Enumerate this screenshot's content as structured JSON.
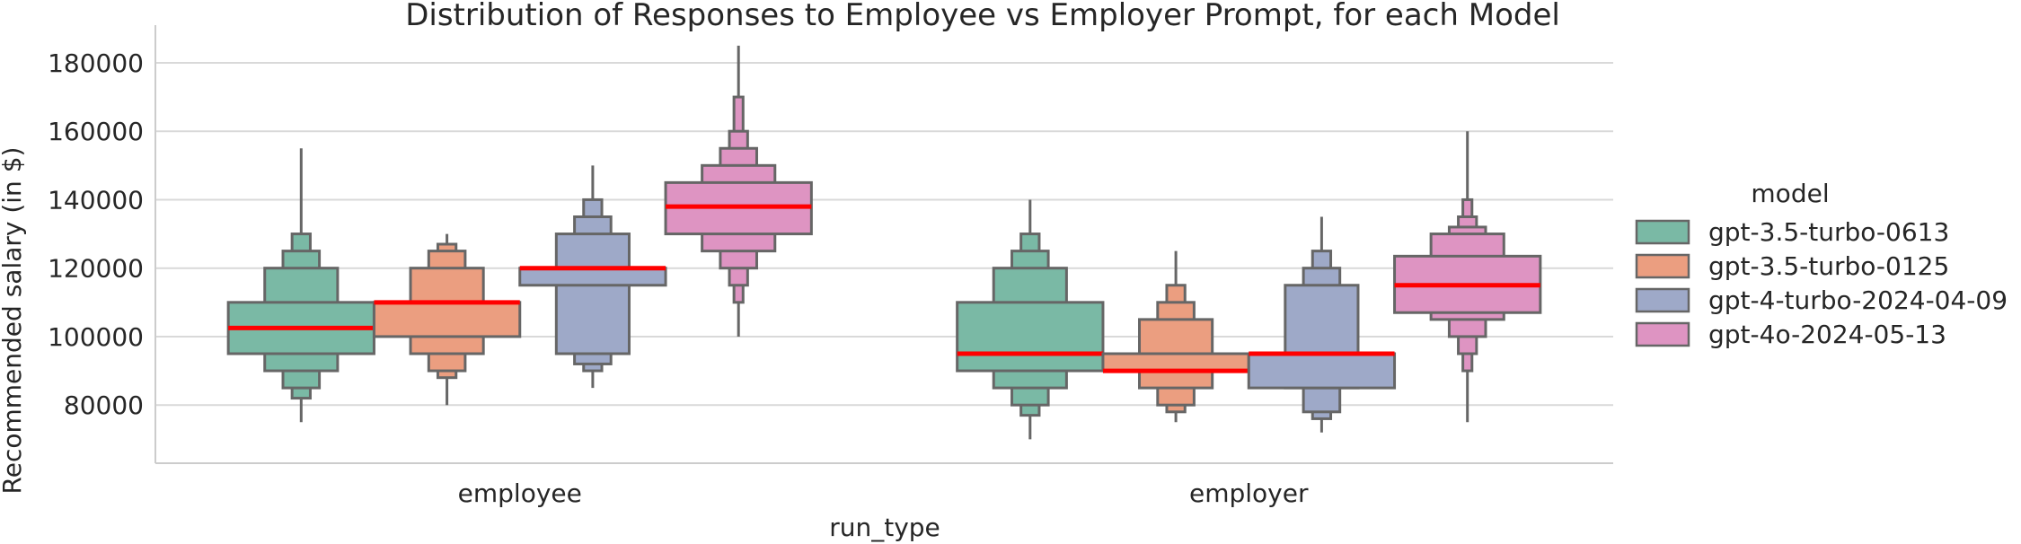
{
  "chart_data": {
    "type": "boxen",
    "title": "Distribution of Responses to Employee vs Employer Prompt, for each Model",
    "xlabel": "run_type",
    "ylabel": "Recommended salary (in $)",
    "categories": [
      "employee",
      "employer"
    ],
    "ylim": [
      63000,
      191000
    ],
    "yticks": [
      80000,
      100000,
      120000,
      140000,
      160000,
      180000
    ],
    "grid": "horizontal",
    "legend": {
      "title": "model",
      "placement": "right"
    },
    "series": [
      {
        "name": "gpt-3.5-turbo-0613",
        "color": "#7ab9a5",
        "boxes": [
          {
            "category": "employee",
            "median": 102500,
            "levels": [
              [
                95000,
                110000
              ],
              [
                90000,
                120000
              ],
              [
                85000,
                125000
              ],
              [
                82000,
                130000
              ]
            ],
            "whisker": [
              75000,
              155000
            ]
          },
          {
            "category": "employer",
            "median": 95000,
            "levels": [
              [
                90000,
                110000
              ],
              [
                85000,
                120000
              ],
              [
                80000,
                125000
              ],
              [
                77000,
                130000
              ]
            ],
            "whisker": [
              70000,
              140000
            ]
          }
        ]
      },
      {
        "name": "gpt-3.5-turbo-0125",
        "color": "#eb9e80",
        "boxes": [
          {
            "category": "employee",
            "median": 110000,
            "levels": [
              [
                100000,
                110000
              ],
              [
                95000,
                120000
              ],
              [
                90000,
                125000
              ],
              [
                88000,
                127000
              ]
            ],
            "whisker": [
              80000,
              130000
            ]
          },
          {
            "category": "employer",
            "median": 90000,
            "levels": [
              [
                90000,
                95000
              ],
              [
                85000,
                105000
              ],
              [
                80000,
                110000
              ],
              [
                78000,
                115000
              ]
            ],
            "whisker": [
              75000,
              125000
            ]
          }
        ]
      },
      {
        "name": "gpt-4-turbo-2024-04-09",
        "color": "#9ea9c8",
        "boxes": [
          {
            "category": "employee",
            "median": 120000,
            "levels": [
              [
                115000,
                120000
              ],
              [
                95000,
                130000
              ],
              [
                92000,
                135000
              ],
              [
                90000,
                140000
              ]
            ],
            "whisker": [
              85000,
              150000
            ]
          },
          {
            "category": "employer",
            "median": 95000,
            "levels": [
              [
                85000,
                95000
              ],
              [
                85000,
                115000
              ],
              [
                78000,
                120000
              ],
              [
                76000,
                125000
              ]
            ],
            "whisker": [
              72000,
              135000
            ]
          }
        ]
      },
      {
        "name": "gpt-4o-2024-05-13",
        "color": "#de94c2",
        "boxes": [
          {
            "category": "employee",
            "median": 138000,
            "levels": [
              [
                130000,
                145000
              ],
              [
                125000,
                150000
              ],
              [
                120000,
                155000
              ],
              [
                115000,
                160000
              ],
              [
                110000,
                170000
              ]
            ],
            "whisker": [
              100000,
              185000
            ]
          },
          {
            "category": "employer",
            "median": 115000,
            "levels": [
              [
                107000,
                123500
              ],
              [
                105000,
                130000
              ],
              [
                100000,
                132000
              ],
              [
                95000,
                135000
              ],
              [
                90000,
                140000
              ]
            ],
            "whisker": [
              75000,
              160000
            ]
          }
        ]
      }
    ]
  }
}
